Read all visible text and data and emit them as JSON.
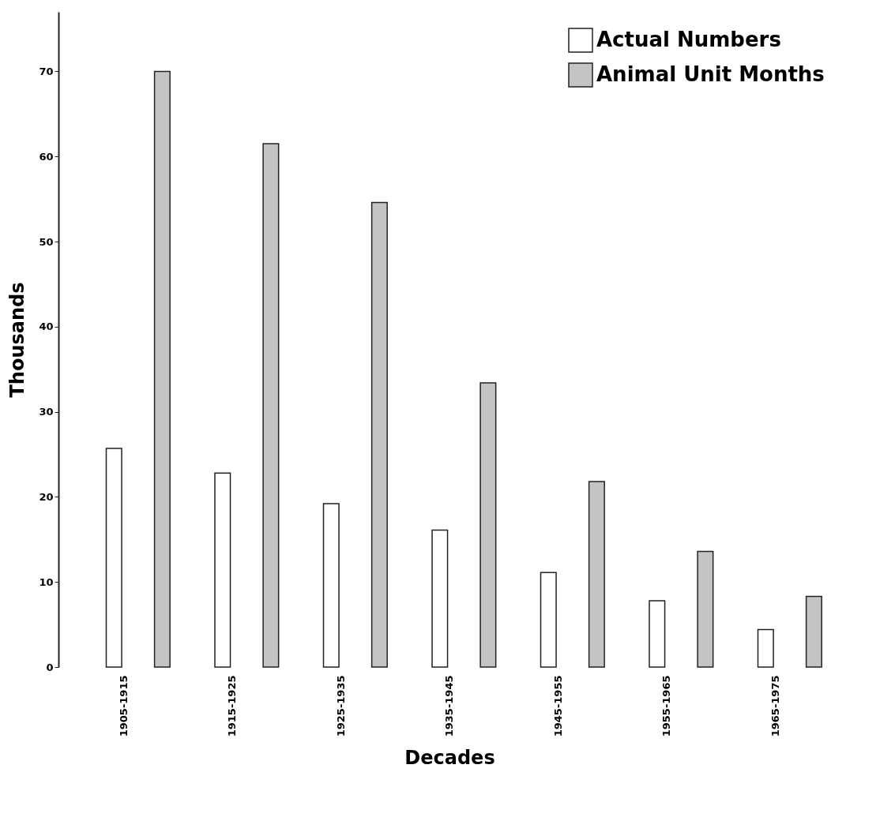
{
  "chart_data": {
    "type": "bar",
    "xlabel": "Decades",
    "ylabel": "Thousands",
    "categories": [
      "1905-1915",
      "1915-1925",
      "1925-1935",
      "1935-1945",
      "1945-1955",
      "1955-1965",
      "1965-1975"
    ],
    "series": [
      {
        "name": "Actual Numbers",
        "color": "#ffffff",
        "values": [
          25.7,
          22.8,
          19.2,
          16.1,
          11.1,
          7.8,
          4.4
        ]
      },
      {
        "name": "Animal Unit Months",
        "color": "#c4c4c4",
        "values": [
          70.0,
          61.5,
          54.6,
          33.4,
          21.8,
          13.6,
          8.3
        ]
      }
    ],
    "ylim": [
      0,
      77
    ],
    "yticks": [
      0,
      10,
      20,
      30,
      40,
      50,
      60,
      70
    ],
    "grid": false,
    "legend": "top right"
  }
}
